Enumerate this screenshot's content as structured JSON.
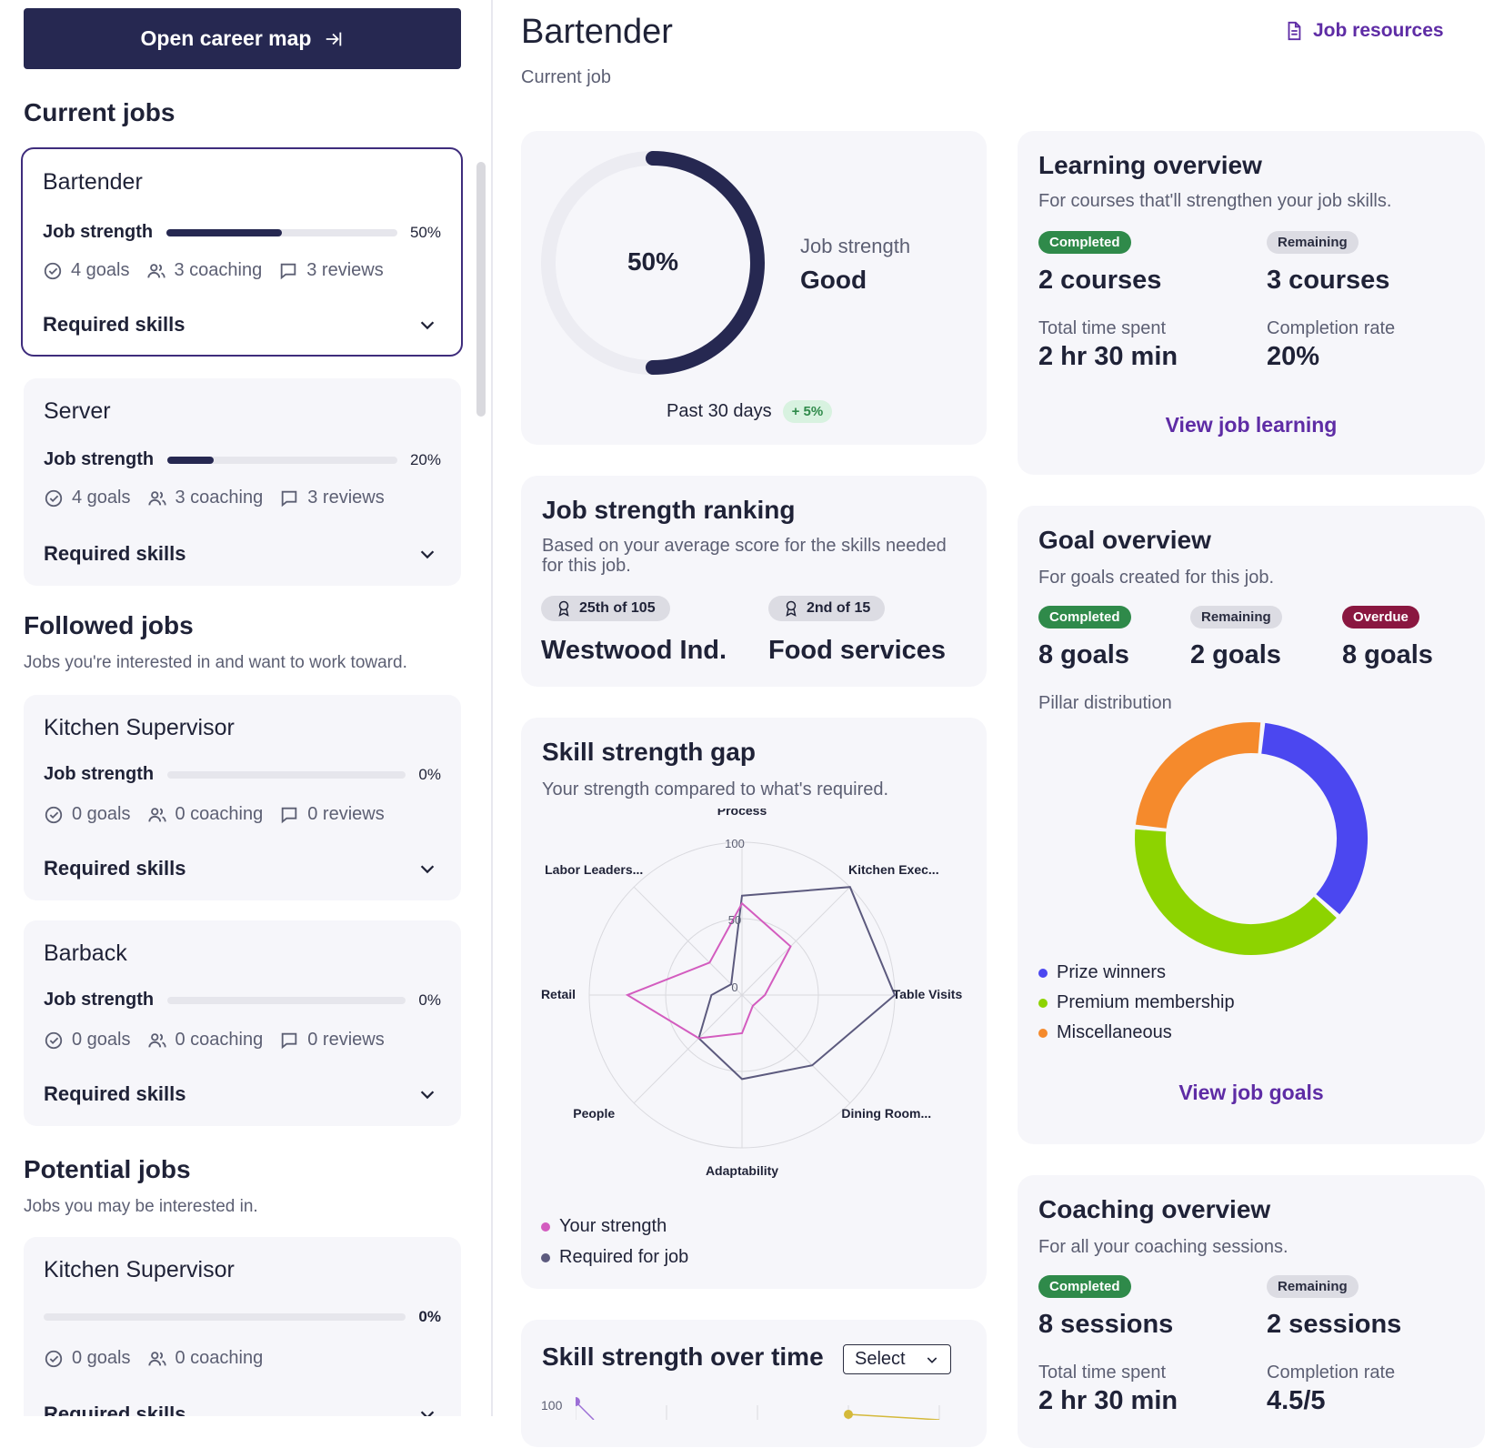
{
  "sidebar": {
    "career_btn": "Open career map",
    "current_title": "Current jobs",
    "followed_title": "Followed jobs",
    "followed_sub": "Jobs you're interested in and want to work toward.",
    "potential_title": "Potential jobs",
    "potential_sub": "Jobs you may be interested in.",
    "strength_label": "Job strength",
    "required_label": "Required skills",
    "cards": [
      {
        "title": "Bartender",
        "pct": "50%",
        "fill": 0.5,
        "goals": "4 goals",
        "coaching": "3 coaching",
        "reviews": "3 reviews"
      },
      {
        "title": "Server",
        "pct": "20%",
        "fill": 0.2,
        "goals": "4 goals",
        "coaching": "3 coaching",
        "reviews": "3 reviews"
      },
      {
        "title": "Kitchen Supervisor",
        "pct": "0%",
        "fill": 0,
        "goals": "0 goals",
        "coaching": "0 coaching",
        "reviews": "0 reviews"
      },
      {
        "title": "Barback",
        "pct": "0%",
        "fill": 0,
        "goals": "0 goals",
        "coaching": "0 coaching",
        "reviews": "0 reviews"
      },
      {
        "title": "Kitchen Supervisor",
        "pct": "0%",
        "fill": 0,
        "goals": "0 goals",
        "coaching": "0 coaching"
      }
    ]
  },
  "header": {
    "title": "Bartender",
    "subtitle": "Current job",
    "resources": "Job resources"
  },
  "strength": {
    "value": "50%",
    "fraction": 0.5,
    "label": "Job strength",
    "rating": "Good",
    "period": "Past 30 days",
    "delta": "+ 5%"
  },
  "ranking": {
    "title": "Job strength ranking",
    "sub": "Based on your average score for the skills needed for this job.",
    "items": [
      {
        "chip": "25th of 105",
        "name": "Westwood Ind."
      },
      {
        "chip": "2nd of 15",
        "name": "Food services"
      }
    ]
  },
  "gap": {
    "title": "Skill strength gap",
    "sub": "Your strength compared to what's required.",
    "legend": [
      "Your strength",
      "Required for job"
    ]
  },
  "chart_data": [
    {
      "type": "radar",
      "axes": [
        "Process",
        "Kitchen Exec...",
        "Table Visits",
        "Dining Room...",
        "Adaptability",
        "People",
        "Retail",
        "Labor Leaders..."
      ],
      "ticks": [
        "0",
        "50",
        "100"
      ],
      "range": [
        0,
        100
      ],
      "series": [
        {
          "name": "Your strength",
          "color": "#d35cbf",
          "values": [
            60,
            45,
            15,
            10,
            25,
            40,
            75,
            30
          ]
        },
        {
          "name": "Required for job",
          "color": "#5c5a7e",
          "values": [
            65,
            100,
            100,
            65,
            55,
            40,
            20,
            10
          ]
        }
      ]
    },
    {
      "type": "donut",
      "labels": [
        "Prize winners",
        "Premium membership",
        "Miscellaneous"
      ],
      "values": [
        35,
        40,
        25
      ],
      "colors": [
        "#4b47f0",
        "#8dd300",
        "#f58a2c"
      ]
    }
  ],
  "over_time": {
    "title": "Skill strength over time",
    "select": "Select",
    "tick": "100"
  },
  "learning": {
    "title": "Learning overview",
    "sub": "For courses that'll strengthen your job skills.",
    "completed_badge": "Completed",
    "remaining_badge": "Remaining",
    "completed": "2 courses",
    "remaining": "3 courses",
    "time_label": "Total time spent",
    "time": "2 hr 30 min",
    "rate_label": "Completion rate",
    "rate": "20%",
    "link": "View job learning"
  },
  "goals": {
    "title": "Goal overview",
    "sub": "For goals created for this job.",
    "completed_badge": "Completed",
    "remaining_badge": "Remaining",
    "overdue_badge": "Overdue",
    "completed": "8 goals",
    "remaining": "2 goals",
    "overdue": "8 goals",
    "pillar": "Pillar distribution",
    "link": "View job goals"
  },
  "coaching": {
    "title": "Coaching overview",
    "sub": "For all your coaching sessions.",
    "completed_badge": "Completed",
    "remaining_badge": "Remaining",
    "completed": "8 sessions",
    "remaining": "2 sessions",
    "time_label": "Total time spent",
    "time": "2 hr 30 min",
    "rate_label": "Completion rate",
    "rate": "4.5/5"
  }
}
